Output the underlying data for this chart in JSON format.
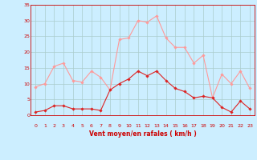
{
  "x": [
    0,
    1,
    2,
    3,
    4,
    5,
    6,
    7,
    8,
    9,
    10,
    11,
    12,
    13,
    14,
    15,
    16,
    17,
    18,
    19,
    20,
    21,
    22,
    23
  ],
  "wind_avg": [
    1,
    1.5,
    3,
    3,
    2,
    2,
    2,
    1.5,
    8,
    10,
    11.5,
    14,
    12.5,
    14,
    11,
    8.5,
    7.5,
    5.5,
    6,
    5.5,
    2.5,
    1,
    4.5,
    2
  ],
  "wind_gust": [
    9,
    10,
    15.5,
    16.5,
    11,
    10.5,
    14,
    12,
    8,
    24,
    24.5,
    30,
    29.5,
    31.5,
    24.5,
    21.5,
    21.5,
    16.5,
    19,
    5.5,
    13,
    10,
    14,
    8.5
  ],
  "xlabel": "Vent moyen/en rafales ( km/h )",
  "ylim": [
    0,
    35
  ],
  "yticks": [
    0,
    5,
    10,
    15,
    20,
    25,
    30,
    35
  ],
  "xlim": [
    -0.5,
    23.5
  ],
  "xticks": [
    0,
    1,
    2,
    3,
    4,
    5,
    6,
    7,
    8,
    9,
    10,
    11,
    12,
    13,
    14,
    15,
    16,
    17,
    18,
    19,
    20,
    21,
    22,
    23
  ],
  "bg_color": "#cceeff",
  "line_color_avg": "#dd2222",
  "line_color_gust": "#ff9999",
  "grid_color": "#aacccc",
  "axis_color": "#cc0000",
  "tick_color": "#cc0000",
  "xlabel_color": "#cc0000"
}
